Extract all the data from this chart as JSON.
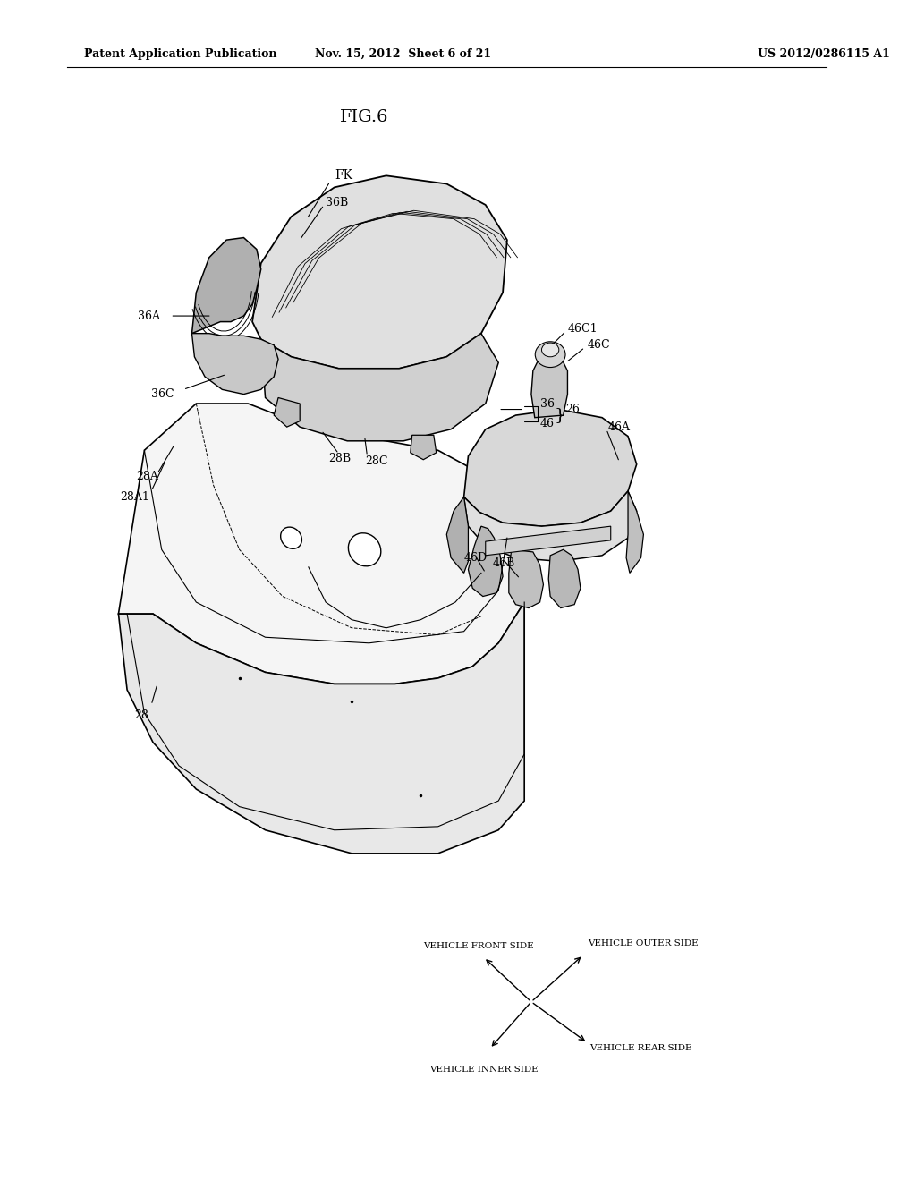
{
  "bg_color": "#ffffff",
  "header_left": "Patent Application Publication",
  "header_mid": "Nov. 15, 2012  Sheet 6 of 21",
  "header_right": "US 2012/0286115 A1",
  "fig_label": "FIG.6",
  "title_fontsize": 14,
  "header_fontsize": 9,
  "label_fontsize": 9
}
